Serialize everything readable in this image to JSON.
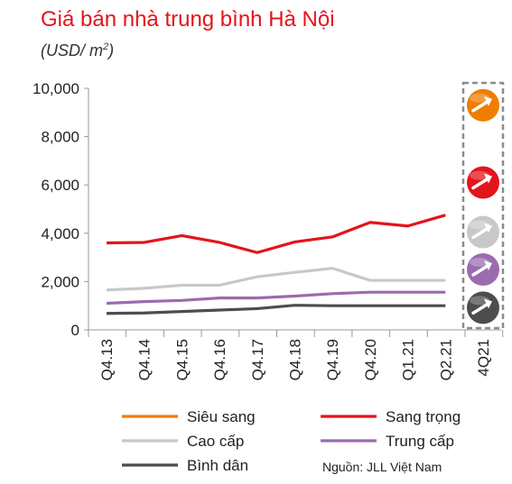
{
  "header": {
    "title": "Giá bán nhà trung bình Hà Nội",
    "subtitle_prefix": "(USD/ m",
    "subtitle_sup": "2",
    "subtitle_suffix": ")"
  },
  "source": "Nguồn: JLL Việt Nam",
  "colors": {
    "sieu_sang": "#ef7d00",
    "sang_trong": "#e3141c",
    "cao_cap": "#c8c8c8",
    "trung_cap": "#9b6bb0",
    "binh_dan": "#4d4d4f",
    "axis": "#999999",
    "forecast_box": "#8c8c8c"
  },
  "chart_data": {
    "type": "line",
    "title": "Giá bán nhà trung bình Hà Nội",
    "ylabel": "(USD/ m2)",
    "xlabel": "",
    "categories": [
      "Q4.13",
      "Q4.14",
      "Q4.15",
      "Q4.16",
      "Q4.17",
      "Q4.18",
      "Q4.19",
      "Q4.20",
      "Q1.21",
      "Q2.21",
      "4Q21"
    ],
    "ylim": [
      0,
      10000
    ],
    "yticks": [
      0,
      2000,
      4000,
      6000,
      8000,
      10000
    ],
    "ytick_labels": [
      "0",
      "2,000",
      "4,000",
      "6,000",
      "8,000",
      "10,000"
    ],
    "grid": false,
    "legend_position": "bottom",
    "series": [
      {
        "name": "Siêu sang",
        "color": "#ef7d00",
        "values": [
          null,
          null,
          null,
          null,
          null,
          null,
          null,
          null,
          null,
          null,
          null
        ],
        "forecast": {
          "category": "4Q21",
          "level": 9300,
          "trend": "up"
        }
      },
      {
        "name": "Sang trọng",
        "color": "#e3141c",
        "values": [
          3600,
          3620,
          3900,
          3620,
          3200,
          3640,
          3850,
          4450,
          4300,
          4750,
          null
        ],
        "forecast": {
          "category": "4Q21",
          "level": 6100,
          "trend": "up"
        }
      },
      {
        "name": "Cao cấp",
        "color": "#c8c8c8",
        "values": [
          1650,
          1720,
          1850,
          1850,
          2200,
          2380,
          2550,
          2050,
          2050,
          2050,
          null
        ],
        "forecast": {
          "category": "4Q21",
          "level": 4050,
          "trend": "up"
        }
      },
      {
        "name": "Trung cấp",
        "color": "#9b6bb0",
        "values": [
          1100,
          1170,
          1220,
          1320,
          1320,
          1400,
          1500,
          1560,
          1560,
          1560,
          null
        ],
        "forecast": {
          "category": "4Q21",
          "level": 2500,
          "trend": "up"
        }
      },
      {
        "name": "Bình dân",
        "color": "#4d4d4f",
        "values": [
          680,
          700,
          760,
          820,
          880,
          1020,
          1000,
          1000,
          1000,
          1000,
          null
        ],
        "forecast": {
          "category": "4Q21",
          "level": 920,
          "trend": "up"
        }
      }
    ]
  }
}
